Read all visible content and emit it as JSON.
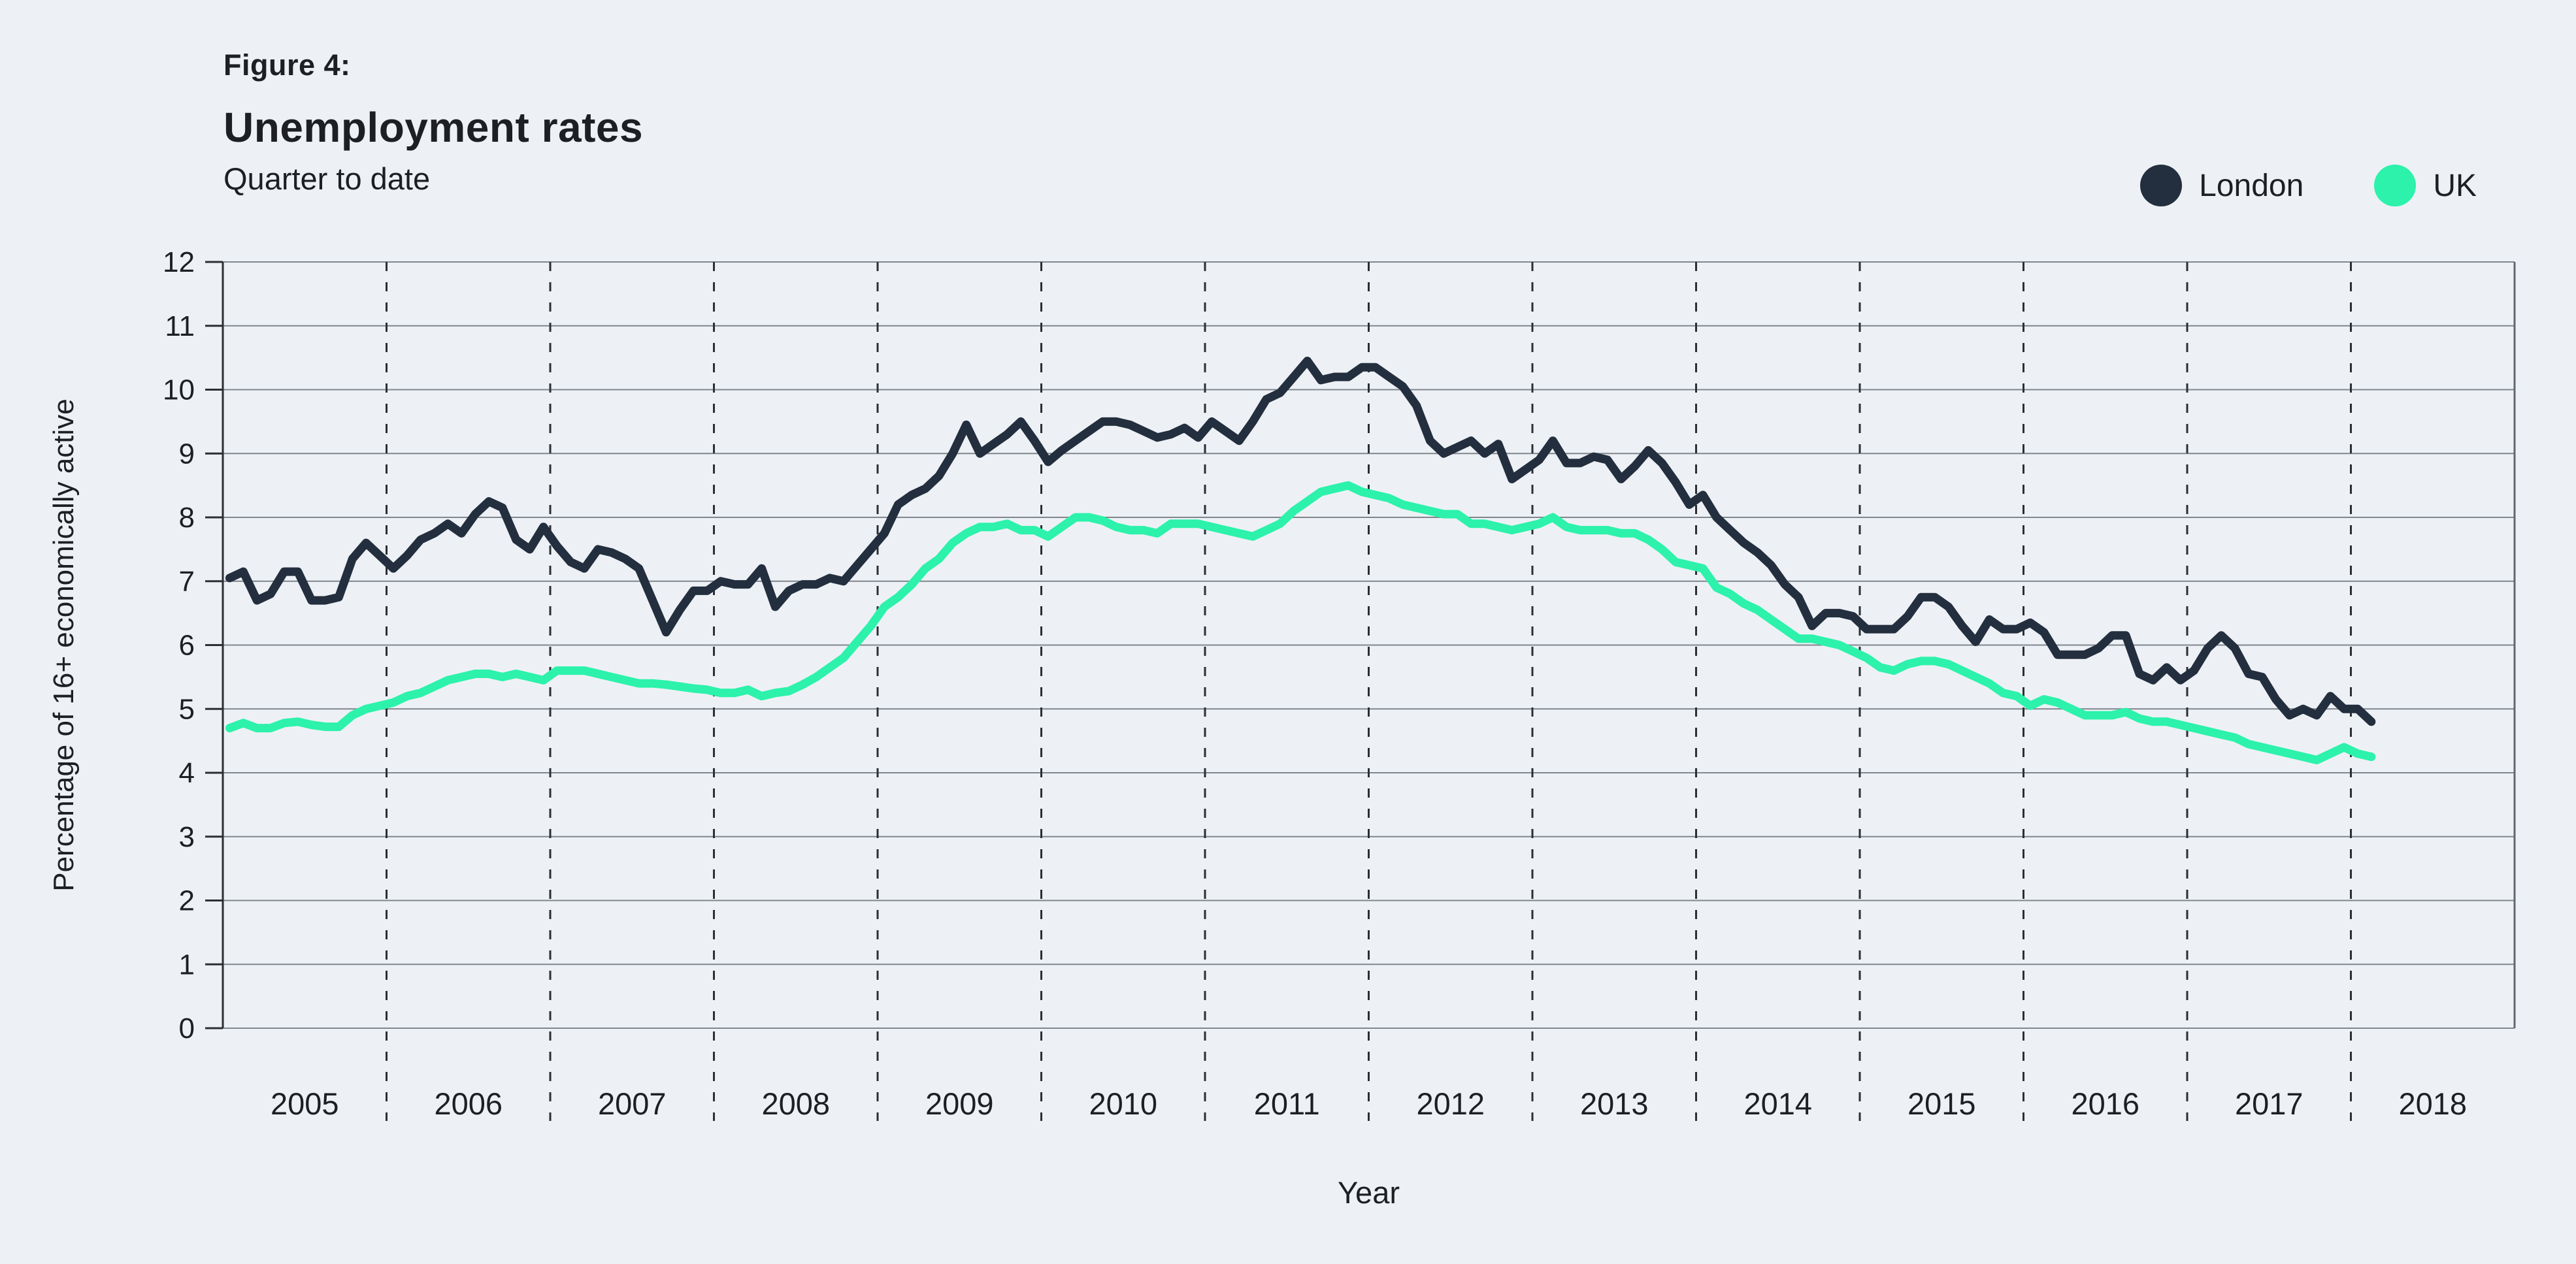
{
  "header": {
    "figure_label": "Figure 4:",
    "title": "Unemployment rates",
    "subtitle": "Quarter to date"
  },
  "legend": [
    {
      "label": "London",
      "color": "#232E3E"
    },
    {
      "label": "UK",
      "color": "#2CF2AB"
    }
  ],
  "colors": {
    "background": "#EDF1F5",
    "london_line": "#232E3E",
    "uk_line": "#2CF2AB",
    "gridline": "#80868E",
    "axis": "#2B2E33",
    "text": "#1D1F23"
  },
  "chart_data": {
    "type": "line",
    "title": "Unemployment rates",
    "subtitle": "Quarter to date",
    "xlabel": "Year",
    "ylabel": "Percentage of 16+ economically active",
    "ylim": [
      0,
      12
    ],
    "yticks": [
      0,
      1,
      2,
      3,
      4,
      5,
      6,
      7,
      8,
      9,
      10,
      11,
      12
    ],
    "grid": "horizontal solid gridlines; dashed vertical separators at each year boundary",
    "legend_position": "top-right",
    "x_year_labels": [
      "2005",
      "2006",
      "2007",
      "2008",
      "2009",
      "2010",
      "2011",
      "2012",
      "2013",
      "2014",
      "2015",
      "2016",
      "2017",
      "2018"
    ],
    "x_axis_domain_years": [
      2005,
      2019
    ],
    "points_frequency": "monthly (rolling quarter), Jan 2005 - Feb 2018",
    "series": [
      {
        "name": "London",
        "color": "#232E3E",
        "values": [
          7.05,
          7.15,
          6.7,
          6.8,
          7.15,
          7.15,
          6.7,
          6.7,
          6.75,
          7.35,
          7.6,
          7.4,
          7.2,
          7.4,
          7.65,
          7.75,
          7.9,
          7.75,
          8.05,
          8.25,
          8.15,
          7.65,
          7.5,
          7.85,
          7.55,
          7.3,
          7.2,
          7.5,
          7.45,
          7.35,
          7.2,
          6.7,
          6.2,
          6.55,
          6.85,
          6.85,
          7.0,
          6.95,
          6.95,
          7.2,
          6.6,
          6.85,
          6.95,
          6.95,
          7.05,
          7.0,
          7.25,
          7.5,
          7.75,
          8.2,
          8.35,
          8.45,
          8.65,
          9.0,
          9.45,
          9.0,
          9.15,
          9.3,
          9.5,
          9.2,
          8.87,
          9.05,
          9.2,
          9.35,
          9.5,
          9.5,
          9.45,
          9.35,
          9.25,
          9.3,
          9.4,
          9.25,
          9.5,
          9.35,
          9.2,
          9.5,
          9.85,
          9.95,
          10.2,
          10.45,
          10.15,
          10.2,
          10.2,
          10.35,
          10.35,
          10.2,
          10.05,
          9.75,
          9.2,
          9.0,
          9.1,
          9.2,
          9.0,
          9.15,
          8.6,
          8.75,
          8.9,
          9.2,
          8.85,
          8.85,
          8.95,
          8.9,
          8.6,
          8.8,
          9.05,
          8.85,
          8.55,
          8.2,
          8.35,
          8.0,
          7.8,
          7.6,
          7.45,
          7.25,
          6.95,
          6.75,
          6.3,
          6.5,
          6.5,
          6.45,
          6.25,
          6.25,
          6.25,
          6.45,
          6.75,
          6.75,
          6.6,
          6.3,
          6.05,
          6.4,
          6.25,
          6.25,
          6.35,
          6.2,
          5.85,
          5.85,
          5.85,
          5.95,
          6.15,
          6.15,
          5.55,
          5.45,
          5.65,
          5.45,
          5.6,
          5.95,
          6.15,
          5.95,
          5.55,
          5.5,
          5.15,
          4.9,
          5.0,
          4.9,
          5.2,
          5.0,
          5.0,
          4.8
        ]
      },
      {
        "name": "UK",
        "color": "#2CF2AB",
        "values": [
          4.7,
          4.78,
          4.7,
          4.7,
          4.78,
          4.8,
          4.75,
          4.72,
          4.72,
          4.9,
          5.0,
          5.05,
          5.1,
          5.2,
          5.25,
          5.35,
          5.45,
          5.5,
          5.55,
          5.55,
          5.5,
          5.55,
          5.5,
          5.45,
          5.6,
          5.6,
          5.6,
          5.55,
          5.5,
          5.45,
          5.4,
          5.4,
          5.38,
          5.35,
          5.32,
          5.3,
          5.25,
          5.25,
          5.3,
          5.2,
          5.25,
          5.28,
          5.38,
          5.5,
          5.65,
          5.8,
          6.05,
          6.3,
          6.6,
          6.75,
          6.95,
          7.2,
          7.35,
          7.6,
          7.75,
          7.85,
          7.85,
          7.9,
          7.8,
          7.8,
          7.7,
          7.85,
          8.0,
          8.0,
          7.95,
          7.85,
          7.8,
          7.8,
          7.75,
          7.9,
          7.9,
          7.9,
          7.85,
          7.8,
          7.75,
          7.7,
          7.8,
          7.9,
          8.1,
          8.25,
          8.4,
          8.45,
          8.5,
          8.4,
          8.35,
          8.3,
          8.2,
          8.15,
          8.1,
          8.05,
          8.05,
          7.9,
          7.9,
          7.85,
          7.8,
          7.85,
          7.9,
          8.0,
          7.85,
          7.8,
          7.8,
          7.8,
          7.75,
          7.75,
          7.65,
          7.5,
          7.3,
          7.25,
          7.2,
          6.9,
          6.8,
          6.65,
          6.55,
          6.4,
          6.25,
          6.1,
          6.1,
          6.05,
          6.0,
          5.9,
          5.8,
          5.65,
          5.6,
          5.7,
          5.75,
          5.75,
          5.7,
          5.6,
          5.5,
          5.4,
          5.25,
          5.2,
          5.05,
          5.15,
          5.1,
          5.0,
          4.9,
          4.9,
          4.9,
          4.95,
          4.85,
          4.8,
          4.8,
          4.75,
          4.7,
          4.65,
          4.6,
          4.55,
          4.45,
          4.4,
          4.35,
          4.3,
          4.25,
          4.2,
          4.3,
          4.4,
          4.3,
          4.25
        ]
      }
    ]
  }
}
